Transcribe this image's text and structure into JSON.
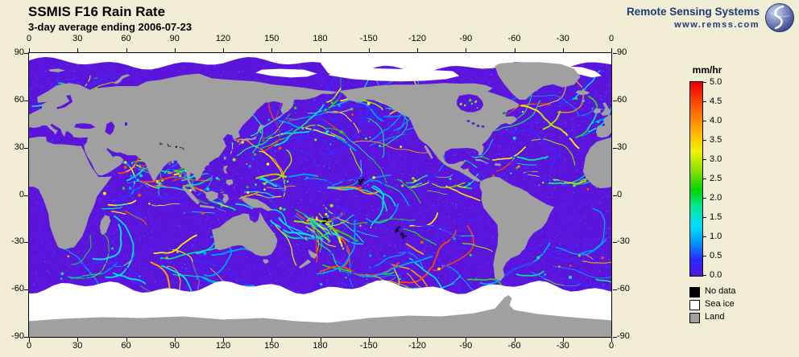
{
  "header": {
    "title": "SSMIS F16 Rain Rate",
    "subtitle": "3-day average ending 2006-07-23",
    "org_name": "Remote Sensing Systems",
    "org_url": "www.remss.com"
  },
  "icons": {
    "logo": "remss-globe-logo"
  },
  "map_axes": {
    "lon_ticks": [
      "0",
      "30",
      "60",
      "90",
      "120",
      "150",
      "180",
      "-150",
      "-120",
      "-90",
      "-60",
      "-30",
      "0"
    ],
    "lat_ticks": [
      "90",
      "60",
      "30",
      "0",
      "-30",
      "-60",
      "-90"
    ]
  },
  "colorbar": {
    "unit_label": "mm/hr",
    "ticks": [
      "5.0",
      "4.5",
      "4.0",
      "3.5",
      "3.0",
      "2.5",
      "2.0",
      "1.5",
      "1.0",
      "0.5",
      "0.0"
    ],
    "stops": [
      {
        "value": 0.0,
        "color": "#5a14dc"
      },
      {
        "value": 0.4,
        "color": "#2828ff"
      },
      {
        "value": 0.9,
        "color": "#00a0ff"
      },
      {
        "value": 1.3,
        "color": "#00e0ff"
      },
      {
        "value": 1.8,
        "color": "#00e890"
      },
      {
        "value": 2.2,
        "color": "#00d400"
      },
      {
        "value": 2.7,
        "color": "#84e000"
      },
      {
        "value": 3.2,
        "color": "#f2f200"
      },
      {
        "value": 3.7,
        "color": "#ffb400"
      },
      {
        "value": 4.3,
        "color": "#ff6000"
      },
      {
        "value": 5.0,
        "color": "#e80000"
      }
    ]
  },
  "legend": [
    {
      "label": "No data",
      "color": "#000000"
    },
    {
      "label": "Sea ice",
      "color": "#ffffff"
    },
    {
      "label": "Land",
      "color": "#a0a0a0"
    }
  ],
  "colors": {
    "background": "#f2edd5",
    "ocean_zero_rain": "#5a14dc",
    "land": "#a0a0a0",
    "sea_ice": "#ffffff",
    "no_data": "#000000",
    "org_text": "#1e3a78",
    "map_border": "#000000"
  },
  "chart_data": {
    "type": "heatmap",
    "title": "SSMIS F16 Rain Rate",
    "subtitle": "3-day average ending 2006-07-23",
    "variable": "3-day average rain rate",
    "units": "mm/hr",
    "scale_range": [
      0,
      5
    ],
    "scale_tick_step": 0.5,
    "projection": "equirectangular world map, Pacific-centered: longitude runs 0,30,...,180,-150,...,-30,0 left to right; latitude 90 (top) to -90 (bottom)",
    "lon_ticks_deg": [
      0,
      30,
      60,
      90,
      120,
      150,
      180,
      -150,
      -120,
      -90,
      -60,
      -30,
      0
    ],
    "lat_ticks_deg": [
      90,
      60,
      30,
      0,
      -30,
      -60,
      -90
    ],
    "legend_categories": [
      "No data",
      "Sea ice",
      "Land"
    ],
    "rain_palette": [
      "#3c28ff",
      "#00a0ff",
      "#00e0ff",
      "#00e890",
      "#22d822",
      "#a0e800",
      "#ffee00",
      "#ffa000",
      "#ff4800"
    ],
    "rain_features": [
      {
        "name": "north-pacific-storm-track",
        "lon": [
          140,
          235
        ],
        "lat": [
          30,
          57
        ],
        "count": 34,
        "tilt": 15,
        "len": [
          40,
          130
        ],
        "bright": 0.35
      },
      {
        "name": "kuroshio-west-pacific",
        "lon": [
          120,
          160
        ],
        "lat": [
          18,
          38
        ],
        "count": 18,
        "tilt": 25,
        "len": [
          30,
          90
        ],
        "bright": 0.5
      },
      {
        "name": "pacific-itcz",
        "lon": [
          135,
          280
        ],
        "lat": [
          4,
          12
        ],
        "count": 30,
        "tilt": 0,
        "len": [
          20,
          70
        ],
        "bright": 0.45
      },
      {
        "name": "spcz",
        "lon": [
          148,
          210
        ],
        "lat": [
          -28,
          -6
        ],
        "count": 22,
        "tilt": -35,
        "len": [
          25,
          80
        ],
        "bright": 0.45
      },
      {
        "name": "spcz-core",
        "lon": [
          170,
          185
        ],
        "lat": [
          -24,
          -12
        ],
        "count": 14,
        "tilt": -30,
        "len": [
          15,
          50
        ],
        "bright": 0.85
      },
      {
        "name": "indian-monsoon",
        "lon": [
          55,
          100
        ],
        "lat": [
          4,
          23
        ],
        "count": 26,
        "tilt": 10,
        "len": [
          20,
          70
        ],
        "bright": 0.55
      },
      {
        "name": "equatorial-indian-ocean",
        "lon": [
          45,
          100
        ],
        "lat": [
          -12,
          5
        ],
        "count": 12,
        "tilt": 0,
        "len": [
          12,
          45
        ],
        "bright": 0.3
      },
      {
        "name": "maritime-continent",
        "lon": [
          95,
          150
        ],
        "lat": [
          -12,
          12
        ],
        "count": 22,
        "tilt": 0,
        "len": [
          10,
          40
        ],
        "bright": 0.4
      },
      {
        "name": "south-indian-storm-track",
        "lon": [
          15,
          115
        ],
        "lat": [
          -55,
          -33
        ],
        "count": 26,
        "tilt": -12,
        "len": [
          30,
          110
        ],
        "bright": 0.25
      },
      {
        "name": "south-pacific-storm-track",
        "lon": [
          175,
          295
        ],
        "lat": [
          -57,
          -36
        ],
        "count": 26,
        "tilt": -12,
        "len": [
          30,
          110
        ],
        "bright": 0.25
      },
      {
        "name": "south-atlantic-storm-track",
        "lon": [
          300,
          360
        ],
        "lat": [
          -55,
          -33
        ],
        "count": 14,
        "tilt": -12,
        "len": [
          30,
          90
        ],
        "bright": 0.25
      },
      {
        "name": "north-atlantic-storm-track",
        "lon": [
          285,
          355
        ],
        "lat": [
          33,
          62
        ],
        "count": 26,
        "tilt": 18,
        "len": [
          30,
          110
        ],
        "bright": 0.3
      },
      {
        "name": "atlantic-itcz",
        "lon": [
          315,
          355
        ],
        "lat": [
          3,
          10
        ],
        "count": 10,
        "tilt": 0,
        "len": [
          15,
          50
        ],
        "bright": 0.45
      },
      {
        "name": "caribbean-gulf-stream",
        "lon": [
          265,
          310
        ],
        "lat": [
          10,
          26
        ],
        "count": 12,
        "tilt": 8,
        "len": [
          15,
          50
        ],
        "bright": 0.35
      },
      {
        "name": "bering-chukchi",
        "lon": [
          178,
          225
        ],
        "lat": [
          52,
          66
        ],
        "count": 12,
        "tilt": 10,
        "len": [
          20,
          60
        ],
        "bright": 0.4
      },
      {
        "name": "nordic-barents",
        "lon": [
          0,
          45
        ],
        "lat": [
          55,
          74
        ],
        "count": 10,
        "tilt": 10,
        "len": [
          15,
          55
        ],
        "bright": 0.3
      },
      {
        "name": "hudson-bay-area",
        "lon": [
          265,
          281
        ],
        "lat": [
          53,
          63
        ],
        "count": 8,
        "tilt": 0,
        "len": [
          8,
          25
        ],
        "bright": 0.55
      },
      {
        "name": "se-pacific-subtropics",
        "lon": [
          210,
          270
        ],
        "lat": [
          -35,
          -15
        ],
        "count": 10,
        "tilt": -20,
        "len": [
          15,
          60
        ],
        "bright": 0.2
      },
      {
        "name": "arabian-sea-bay-of-bengal",
        "lon": [
          60,
          95
        ],
        "lat": [
          8,
          20
        ],
        "count": 10,
        "tilt": 0,
        "len": [
          15,
          45
        ],
        "bright": 0.5
      }
    ],
    "no_data_patches": [
      {
        "lon": 183,
        "lat": -16
      },
      {
        "lon": 227,
        "lat": -21
      },
      {
        "lon": 231,
        "lat": -25
      },
      {
        "lon": 205,
        "lat": 9
      }
    ]
  }
}
